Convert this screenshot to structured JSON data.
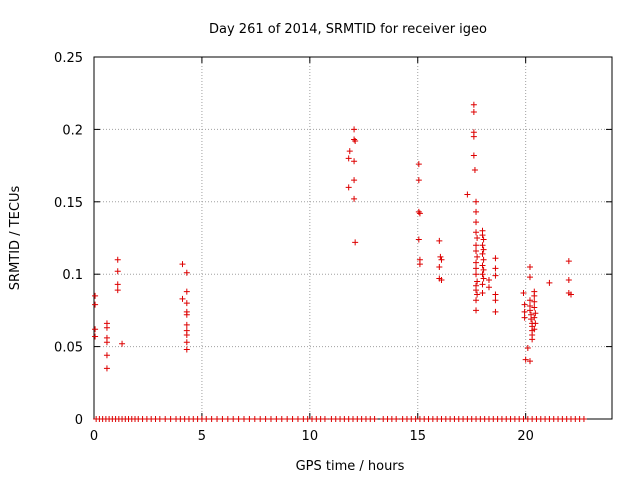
{
  "chart_data": {
    "type": "scatter",
    "title": "Day 261 of 2014, SRMTID for receiver igeo",
    "xlabel": "GPS time / hours",
    "ylabel": "SRMTID / TECUs",
    "xlim": [
      0,
      24
    ],
    "ylim": [
      0,
      0.25
    ],
    "xticks": [
      0,
      5,
      10,
      15,
      20
    ],
    "xtick_labels": [
      "0",
      "5",
      "10",
      "15",
      "20"
    ],
    "yticks": [
      0,
      0.05,
      0.1,
      0.15,
      0.2,
      0.25
    ],
    "ytick_labels": [
      "0",
      "0.05",
      "0.1",
      "0.15",
      "0.2",
      "0.25"
    ],
    "grid": true,
    "marker": "+",
    "color": "#dd0000",
    "series": [
      {
        "name": "SRMTID",
        "points": [
          [
            0.05,
            0.085
          ],
          [
            0.05,
            0.079
          ],
          [
            0.05,
            0.062
          ],
          [
            0.05,
            0.057
          ],
          [
            0.6,
            0.066
          ],
          [
            0.6,
            0.063
          ],
          [
            0.6,
            0.056
          ],
          [
            0.6,
            0.053
          ],
          [
            0.6,
            0.044
          ],
          [
            0.6,
            0.035
          ],
          [
            1.1,
            0.11
          ],
          [
            1.1,
            0.102
          ],
          [
            1.1,
            0.093
          ],
          [
            1.1,
            0.089
          ],
          [
            1.3,
            0.052
          ],
          [
            4.1,
            0.107
          ],
          [
            4.1,
            0.083
          ],
          [
            4.3,
            0.101
          ],
          [
            4.3,
            0.088
          ],
          [
            4.3,
            0.08
          ],
          [
            4.3,
            0.074
          ],
          [
            4.3,
            0.072
          ],
          [
            4.3,
            0.065
          ],
          [
            4.3,
            0.061
          ],
          [
            4.3,
            0.058
          ],
          [
            4.3,
            0.053
          ],
          [
            4.3,
            0.048
          ],
          [
            11.8,
            0.18
          ],
          [
            11.8,
            0.16
          ],
          [
            11.85,
            0.185
          ],
          [
            12.05,
            0.2
          ],
          [
            12.05,
            0.193
          ],
          [
            12.1,
            0.192
          ],
          [
            12.05,
            0.178
          ],
          [
            12.05,
            0.165
          ],
          [
            12.05,
            0.152
          ],
          [
            12.1,
            0.122
          ],
          [
            15.05,
            0.176
          ],
          [
            15.05,
            0.165
          ],
          [
            15.05,
            0.143
          ],
          [
            15.1,
            0.142
          ],
          [
            15.05,
            0.124
          ],
          [
            15.1,
            0.11
          ],
          [
            15.1,
            0.107
          ],
          [
            16.0,
            0.123
          ],
          [
            16.05,
            0.112
          ],
          [
            16.1,
            0.11
          ],
          [
            16.0,
            0.105
          ],
          [
            16.0,
            0.097
          ],
          [
            16.1,
            0.096
          ],
          [
            17.3,
            0.155
          ],
          [
            17.6,
            0.217
          ],
          [
            17.6,
            0.212
          ],
          [
            17.6,
            0.198
          ],
          [
            17.6,
            0.195
          ],
          [
            17.6,
            0.182
          ],
          [
            17.65,
            0.172
          ],
          [
            17.7,
            0.15
          ],
          [
            17.7,
            0.143
          ],
          [
            17.7,
            0.136
          ],
          [
            17.7,
            0.129
          ],
          [
            17.75,
            0.125
          ],
          [
            17.7,
            0.12
          ],
          [
            17.7,
            0.116
          ],
          [
            17.75,
            0.112
          ],
          [
            17.7,
            0.108
          ],
          [
            17.7,
            0.104
          ],
          [
            17.7,
            0.1
          ],
          [
            17.75,
            0.095
          ],
          [
            17.7,
            0.092
          ],
          [
            17.7,
            0.089
          ],
          [
            17.75,
            0.086
          ],
          [
            17.7,
            0.082
          ],
          [
            17.7,
            0.075
          ],
          [
            18.0,
            0.13
          ],
          [
            18.0,
            0.127
          ],
          [
            18.05,
            0.124
          ],
          [
            18.0,
            0.12
          ],
          [
            18.05,
            0.117
          ],
          [
            18.0,
            0.114
          ],
          [
            18.05,
            0.11
          ],
          [
            18.0,
            0.106
          ],
          [
            18.05,
            0.103
          ],
          [
            18.0,
            0.1
          ],
          [
            18.05,
            0.097
          ],
          [
            18.0,
            0.093
          ],
          [
            18.0,
            0.087
          ],
          [
            18.3,
            0.096
          ],
          [
            18.3,
            0.091
          ],
          [
            18.6,
            0.111
          ],
          [
            18.6,
            0.104
          ],
          [
            18.6,
            0.099
          ],
          [
            18.6,
            0.086
          ],
          [
            18.6,
            0.082
          ],
          [
            18.6,
            0.074
          ],
          [
            19.9,
            0.087
          ],
          [
            19.95,
            0.079
          ],
          [
            19.95,
            0.074
          ],
          [
            19.95,
            0.07
          ],
          [
            20.0,
            0.041
          ],
          [
            20.1,
            0.049
          ],
          [
            20.2,
            0.04
          ],
          [
            20.2,
            0.105
          ],
          [
            20.2,
            0.098
          ],
          [
            20.2,
            0.082
          ],
          [
            20.2,
            0.078
          ],
          [
            20.2,
            0.075
          ],
          [
            20.25,
            0.072
          ],
          [
            20.25,
            0.069
          ],
          [
            20.3,
            0.066
          ],
          [
            20.3,
            0.064
          ],
          [
            20.3,
            0.061
          ],
          [
            20.3,
            0.058
          ],
          [
            20.3,
            0.055
          ],
          [
            20.4,
            0.088
          ],
          [
            20.4,
            0.085
          ],
          [
            20.4,
            0.081
          ],
          [
            20.4,
            0.077
          ],
          [
            20.45,
            0.073
          ],
          [
            20.4,
            0.07
          ],
          [
            20.45,
            0.066
          ],
          [
            20.4,
            0.062
          ],
          [
            21.1,
            0.094
          ],
          [
            22.0,
            0.109
          ],
          [
            22.0,
            0.096
          ],
          [
            22.0,
            0.087
          ],
          [
            22.1,
            0.086
          ]
        ],
        "zeros": [
          0.1,
          0.25,
          0.4,
          0.55,
          0.7,
          0.85,
          1.0,
          1.15,
          1.3,
          1.45,
          1.6,
          1.75,
          1.9,
          2.05,
          2.25,
          2.45,
          2.65,
          2.85,
          3.05,
          3.3,
          3.55,
          3.8,
          4.0,
          4.2,
          4.4,
          4.6,
          4.8,
          5.0,
          5.2,
          5.45,
          5.7,
          5.95,
          6.2,
          6.45,
          6.7,
          6.95,
          7.2,
          7.45,
          7.7,
          7.95,
          8.2,
          8.45,
          8.7,
          8.95,
          9.2,
          9.45,
          9.7,
          9.9,
          10.1,
          10.3,
          10.5,
          10.7,
          11.0,
          11.2,
          11.4,
          11.6,
          11.8,
          12.0,
          12.2,
          12.4,
          12.6,
          12.8,
          13.0,
          13.4,
          13.6,
          13.8,
          14.0,
          14.3,
          14.5,
          14.7,
          14.9,
          15.1,
          15.3,
          15.5,
          15.7,
          15.9,
          16.1,
          16.3,
          16.5,
          16.7,
          16.9,
          17.1,
          17.3,
          17.5,
          17.7,
          17.9,
          18.1,
          18.3,
          18.5,
          18.7,
          18.9,
          19.1,
          19.3,
          19.5,
          19.7,
          19.9,
          20.1,
          20.3,
          20.5,
          20.7,
          20.9,
          21.1,
          21.3,
          21.5,
          21.7,
          21.9,
          22.1,
          22.3,
          22.5,
          22.7
        ]
      }
    ]
  }
}
